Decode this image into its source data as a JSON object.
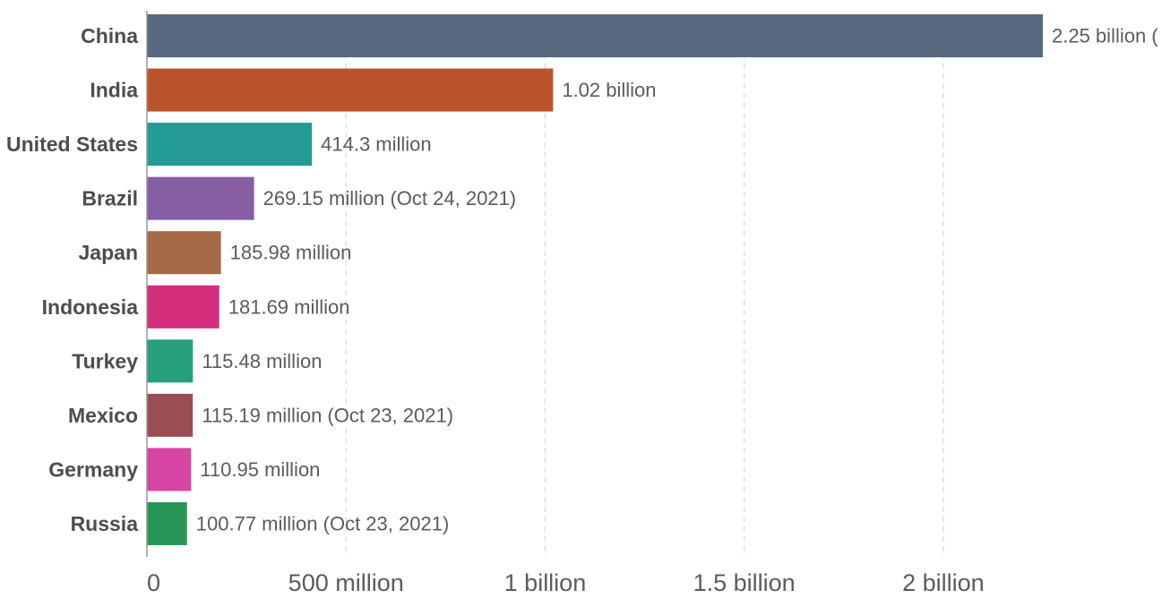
{
  "chart_data": {
    "type": "bar",
    "orientation": "horizontal",
    "categories": [
      "China",
      "India",
      "United States",
      "Brazil",
      "Japan",
      "Indonesia",
      "Turkey",
      "Mexico",
      "Germany",
      "Russia"
    ],
    "values": [
      2250000000,
      1020000000,
      414300000,
      269150000,
      185980000,
      181690000,
      115480000,
      115190000,
      110950000,
      100770000
    ],
    "value_labels": [
      "2.25 billion (",
      "1.02 billion",
      "414.3 million",
      "269.15 million (Oct 24, 2021)",
      "185.98 million",
      "181.69 million",
      "115.48 million",
      "115.19 million (Oct 23, 2021)",
      "110.95 million",
      "100.77 million (Oct 23, 2021)"
    ],
    "colors": [
      "#58697f",
      "#bb532c",
      "#239b94",
      "#865ea3",
      "#a46a48",
      "#d42f7c",
      "#26a07b",
      "#9b4d55",
      "#d645a1",
      "#289756"
    ],
    "x_ticks": [
      {
        "value": 0,
        "label": "0"
      },
      {
        "value": 500000000,
        "label": "500 million"
      },
      {
        "value": 1000000000,
        "label": "1 billion"
      },
      {
        "value": 1500000000,
        "label": "1.5 billion"
      },
      {
        "value": 2000000000,
        "label": "2 billion"
      }
    ],
    "xlim": [
      0,
      2250000000
    ],
    "title": "",
    "xlabel": "",
    "ylabel": "",
    "grid": true,
    "legend": "none"
  }
}
